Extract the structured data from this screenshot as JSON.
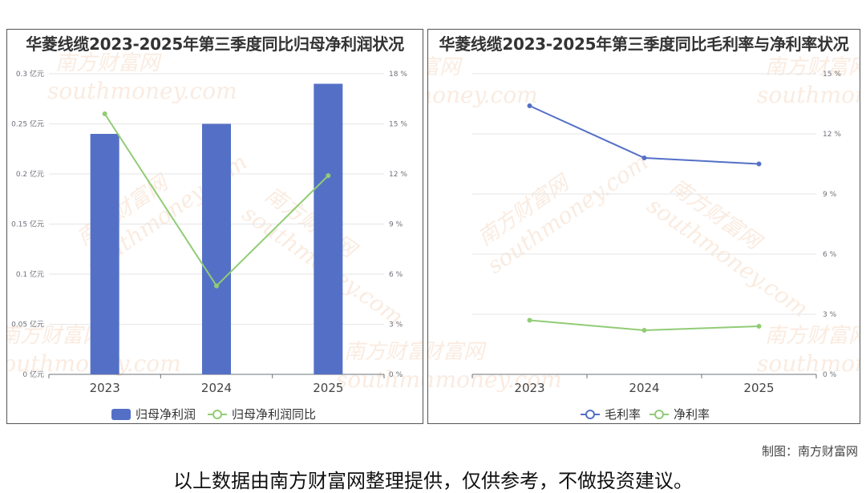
{
  "credit": "制图：南方财富网",
  "disclaimer": "以上数据由南方财富网整理提供，仅供参考，不做投资建议。",
  "watermark": {
    "cn": "南方财富网",
    "en": "southmoney.com"
  },
  "colors": {
    "bar": "#5470c6",
    "line_green": "#91cc75",
    "line_blue": "#5470c6",
    "grid": "#e6e6e6",
    "axis": "#6e7079"
  },
  "chart_data": [
    {
      "type": "bar",
      "title": "华菱线缆2023-2025年第三季度同比归母净利润状况",
      "categories": [
        "2023",
        "2024",
        "2025"
      ],
      "series": [
        {
          "name": "归母净利润",
          "type": "bar",
          "axis": "left",
          "values": [
            0.24,
            0.25,
            0.29
          ]
        },
        {
          "name": "归母净利润同比",
          "type": "line",
          "axis": "right",
          "values": [
            15.6,
            5.3,
            11.9
          ]
        }
      ],
      "y_left": {
        "range": [
          0,
          0.3
        ],
        "ticks": [
          "0 亿元",
          "0.05 亿元",
          "0.1 亿元",
          "0.15 亿元",
          "0.2 亿元",
          "0.25 亿元",
          "0.3 亿元"
        ]
      },
      "y_right": {
        "range": [
          0,
          18
        ],
        "ticks": [
          "0 %",
          "3 %",
          "6 %",
          "9 %",
          "12 %",
          "15 %",
          "18 %"
        ]
      },
      "legend": "bottom",
      "grid": true
    },
    {
      "type": "line",
      "title": "华菱线缆2023-2025年第三季度同比毛利率与净利率状况",
      "categories": [
        "2023",
        "2024",
        "2025"
      ],
      "series": [
        {
          "name": "毛利率",
          "values": [
            13.4,
            10.8,
            10.5
          ]
        },
        {
          "name": "净利率",
          "values": [
            2.7,
            2.2,
            2.4
          ]
        }
      ],
      "y_right": {
        "range": [
          0,
          15
        ],
        "ticks": [
          "0 %",
          "3 %",
          "6 %",
          "9 %",
          "12 %",
          "15 %"
        ]
      },
      "legend": "bottom",
      "grid": true
    }
  ]
}
